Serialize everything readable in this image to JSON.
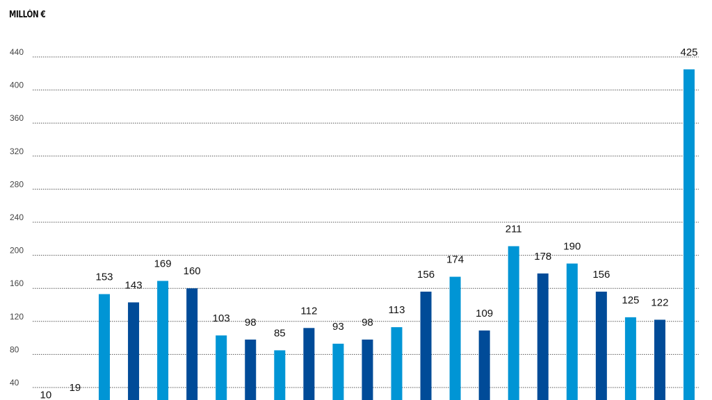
{
  "chart_data": {
    "type": "bar",
    "ylabel": "MILLÓN €",
    "ylim": [
      0,
      440
    ],
    "yticks": [
      40,
      80,
      120,
      160,
      200,
      240,
      280,
      320,
      360,
      400,
      440
    ],
    "grid": true,
    "values": [
      10,
      19,
      153,
      143,
      169,
      160,
      103,
      98,
      85,
      112,
      93,
      98,
      113,
      156,
      174,
      109,
      211,
      178,
      190,
      156,
      125,
      122,
      425
    ],
    "colors": [
      "#0095d5",
      "#004b98"
    ],
    "data_labels": true
  }
}
